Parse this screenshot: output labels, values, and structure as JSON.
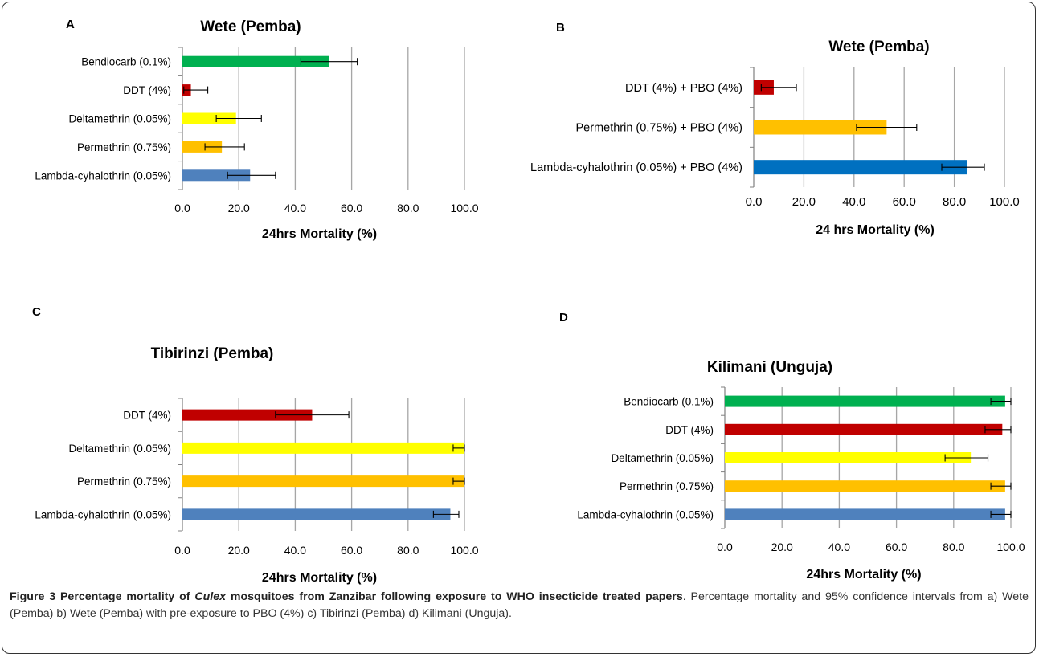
{
  "caption": {
    "bold_before": "Figure 3 Percentage mortality of ",
    "italic": "Culex",
    "bold_after": " mosquitoes from Zanzibar following exposure to WHO insecticide treated papers",
    "rest": ". Percentage mortality and 95% confidence intervals from a) Wete (Pemba) b) Wete (Pemba) with pre-exposure to PBO (4%) c) Tibirinzi (Pemba) d) Kilimani (Unguja)."
  },
  "chart_data": [
    {
      "id": "A",
      "type": "bar",
      "orientation": "horizontal",
      "title": "Wete (Pemba)",
      "xlabel": "24hrs Mortality (%)",
      "xlim": [
        0,
        100
      ],
      "xticks": [
        "0.0",
        "20.0",
        "40.0",
        "60.0",
        "80.0",
        "100.0"
      ],
      "grid": true,
      "categories": [
        "Bendiocarb (0.1%)",
        "DDT (4%)",
        "Deltamethrin (0.05%)",
        "Permethrin (0.75%)",
        "Lambda-cyhalothrin (0.05%)"
      ],
      "values": [
        52,
        3,
        19,
        14,
        24
      ],
      "error_low": [
        42,
        0.5,
        12,
        8,
        16
      ],
      "error_high": [
        62,
        9,
        28,
        22,
        33
      ],
      "colors": [
        "#00b050",
        "#c00000",
        "#ffff00",
        "#ffc000",
        "#4f81bd"
      ]
    },
    {
      "id": "B",
      "type": "bar",
      "orientation": "horizontal",
      "title": "Wete (Pemba)",
      "xlabel": "24 hrs Mortality (%)",
      "xlim": [
        0,
        100
      ],
      "xticks": [
        "0.0",
        "20.0",
        "40.0",
        "60.0",
        "80.0",
        "100.0"
      ],
      "grid": true,
      "categories": [
        "DDT (4%) + PBO (4%)",
        "Permethrin (0.75%) + PBO (4%)",
        "Lambda-cyhalothrin (0.05%) + PBO (4%)"
      ],
      "values": [
        8,
        53,
        85
      ],
      "error_low": [
        3,
        41,
        75
      ],
      "error_high": [
        17,
        65,
        92
      ],
      "colors": [
        "#c00000",
        "#ffc000",
        "#0070c0"
      ]
    },
    {
      "id": "C",
      "type": "bar",
      "orientation": "horizontal",
      "title": "Tibirinzi (Pemba)",
      "xlabel": "24hrs Mortality (%)",
      "xlim": [
        0,
        100
      ],
      "xticks": [
        "0.0",
        "20.0",
        "40.0",
        "60.0",
        "80.0",
        "100.0"
      ],
      "grid": true,
      "categories": [
        "DDT (4%)",
        "Deltamethrin (0.05%)",
        "Permethrin (0.75%)",
        "Lambda-cyhalothrin (0.05%)"
      ],
      "values": [
        46,
        100,
        100,
        95
      ],
      "error_low": [
        33,
        96,
        96,
        89
      ],
      "error_high": [
        59,
        100,
        100,
        98
      ],
      "colors": [
        "#c00000",
        "#ffff00",
        "#ffc000",
        "#4f81bd"
      ]
    },
    {
      "id": "D",
      "type": "bar",
      "orientation": "horizontal",
      "title": "Kilimani (Unguja)",
      "xlabel": "24hrs Mortality (%)",
      "xlim": [
        0,
        100
      ],
      "xticks": [
        "0.0",
        "20.0",
        "40.0",
        "60.0",
        "80.0",
        "100.0"
      ],
      "grid": true,
      "categories": [
        "Bendiocarb (0.1%)",
        "DDT (4%)",
        "Deltamethrin (0.05%)",
        "Permethrin (0.75%)",
        "Lambda-cyhalothrin (0.05%)"
      ],
      "values": [
        98,
        97,
        86,
        98,
        98
      ],
      "error_low": [
        93,
        91,
        77,
        93,
        93
      ],
      "error_high": [
        100,
        100,
        92,
        100,
        100
      ],
      "colors": [
        "#00b050",
        "#c00000",
        "#ffff00",
        "#ffc000",
        "#4f81bd"
      ]
    }
  ]
}
